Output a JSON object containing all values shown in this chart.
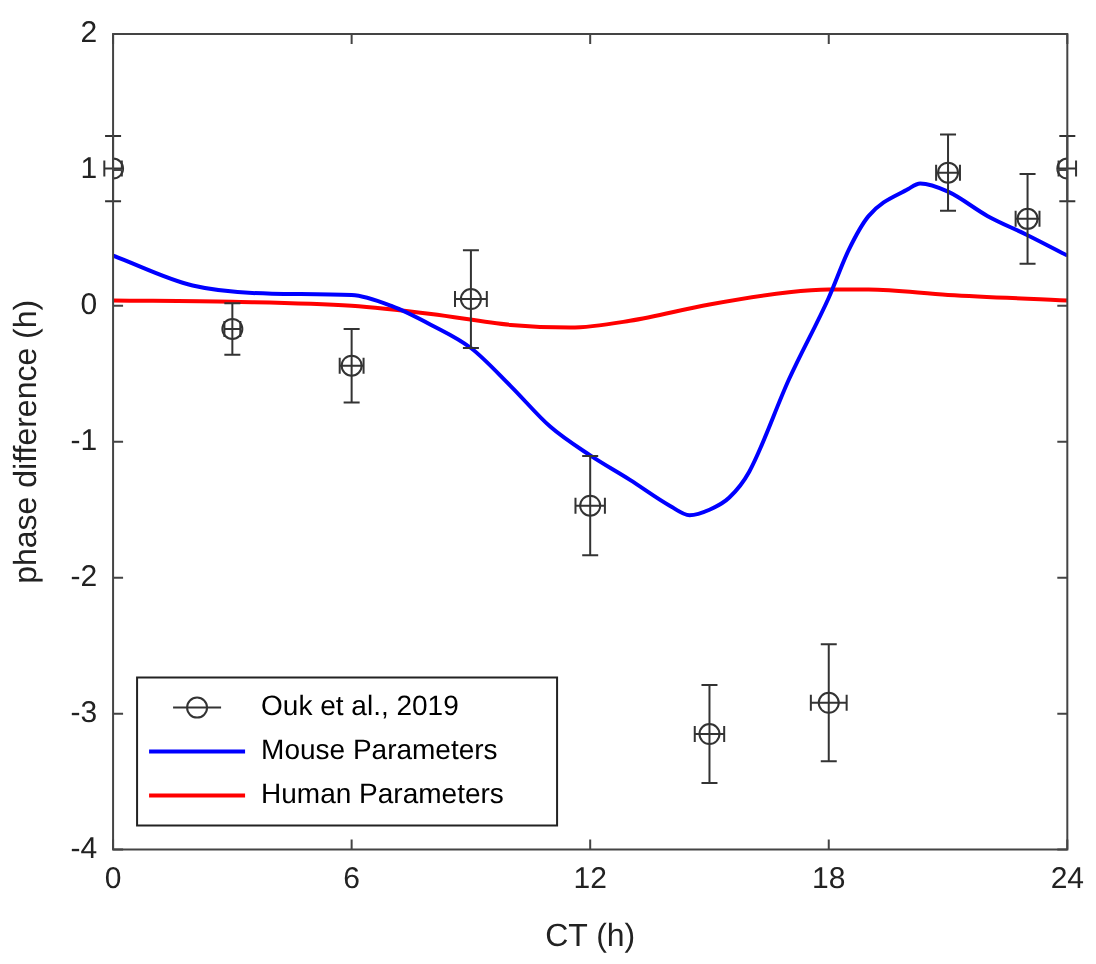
{
  "chart_data": {
    "type": "line",
    "xlabel": "CT (h)",
    "ylabel": "phase difference (h)",
    "xlim": [
      0,
      24
    ],
    "xticks": [
      0,
      6,
      12,
      18,
      24
    ],
    "ylim": [
      -4,
      2
    ],
    "yticks": [
      -4,
      -3,
      -2,
      -1,
      0,
      1,
      2
    ],
    "grid": false,
    "legend": "bottom left",
    "line_style": "solid",
    "marker": "none",
    "series": [
      {
        "name": "Ouk et al., 2019",
        "type": "scatter",
        "marker": "circle",
        "color": "#333333",
        "x": [
          0,
          3,
          6,
          9,
          12,
          15,
          18,
          21,
          23,
          24
        ],
        "values": [
          1.01,
          -0.17,
          -0.44,
          0.05,
          -1.47,
          -3.15,
          -2.92,
          0.98,
          0.64,
          1.01
        ],
        "errors": [
          0.24,
          0.19,
          0.27,
          0.36,
          0.365,
          0.36,
          0.43,
          0.28,
          0.33,
          0.24
        ],
        "xerrors": [
          0.22,
          0.2,
          0.3,
          0.4,
          0.37,
          0.37,
          0.45,
          0.3,
          0.3,
          0.22
        ]
      },
      {
        "name": "Mouse Parameters",
        "color": "#0000ff",
        "x": [
          0,
          2,
          4,
          6,
          7,
          8,
          9,
          10,
          11,
          12,
          13,
          14,
          14.5,
          15,
          15.5,
          16,
          17,
          18,
          18.5,
          19,
          20,
          20.3,
          21,
          22,
          23,
          24
        ],
        "values": [
          0.37,
          0.15,
          0.09,
          0.08,
          0,
          -0.14,
          -0.31,
          -0.59,
          -0.89,
          -1.1,
          -1.28,
          -1.47,
          -1.54,
          -1.5,
          -1.41,
          -1.22,
          -0.54,
          0.06,
          0.41,
          0.66,
          0.86,
          0.9,
          0.84,
          0.66,
          0.52,
          0.37
        ]
      },
      {
        "name": "Human Parameters",
        "color": "#ff0000",
        "x": [
          0,
          3,
          6,
          8,
          10,
          11.5,
          13,
          15,
          17,
          18,
          19,
          21,
          24
        ],
        "values": [
          0.04,
          0.03,
          0,
          -0.06,
          -0.14,
          -0.16,
          -0.11,
          0.01,
          0.1,
          0.12,
          0.12,
          0.08,
          0.04
        ]
      }
    ]
  }
}
